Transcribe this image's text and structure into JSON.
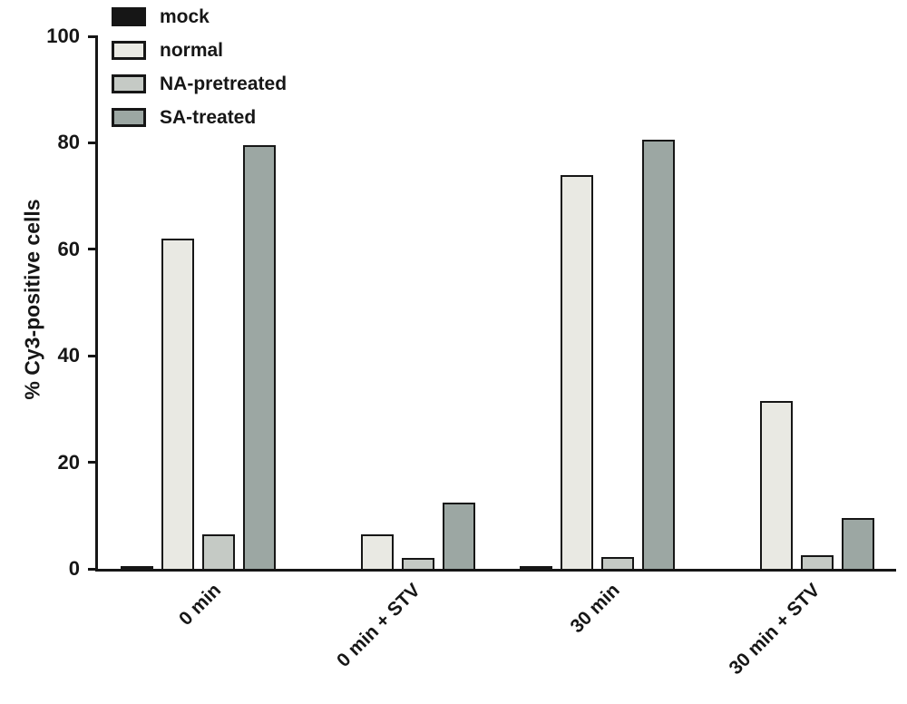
{
  "figure": {
    "background": "#ffffff",
    "axis_color": "#161616"
  },
  "chart_data": {
    "type": "bar",
    "title": "",
    "xlabel": "",
    "ylabel": "% Cy3-positive cells",
    "ylim": [
      0,
      100
    ],
    "yticks": [
      0,
      20,
      40,
      60,
      80,
      100
    ],
    "grid": false,
    "legend_position": "top-left",
    "bar_border_color": "#161616",
    "categories": [
      "0 min",
      "0 min + STV",
      "30 min",
      "30 min + STV"
    ],
    "series": [
      {
        "name": "mock",
        "color": "#161616",
        "values": [
          0.5,
          0,
          0.5,
          0
        ]
      },
      {
        "name": "normal",
        "color": "#e9e9e3",
        "values": [
          62,
          6.5,
          74,
          31.5
        ]
      },
      {
        "name": "NA-pretreated",
        "color": "#c5cac5",
        "values": [
          6.5,
          2,
          2.2,
          2.5
        ]
      },
      {
        "name": "SA-treated",
        "color": "#9ca7a3",
        "values": [
          79.5,
          12.5,
          80.5,
          9.5
        ]
      }
    ]
  }
}
